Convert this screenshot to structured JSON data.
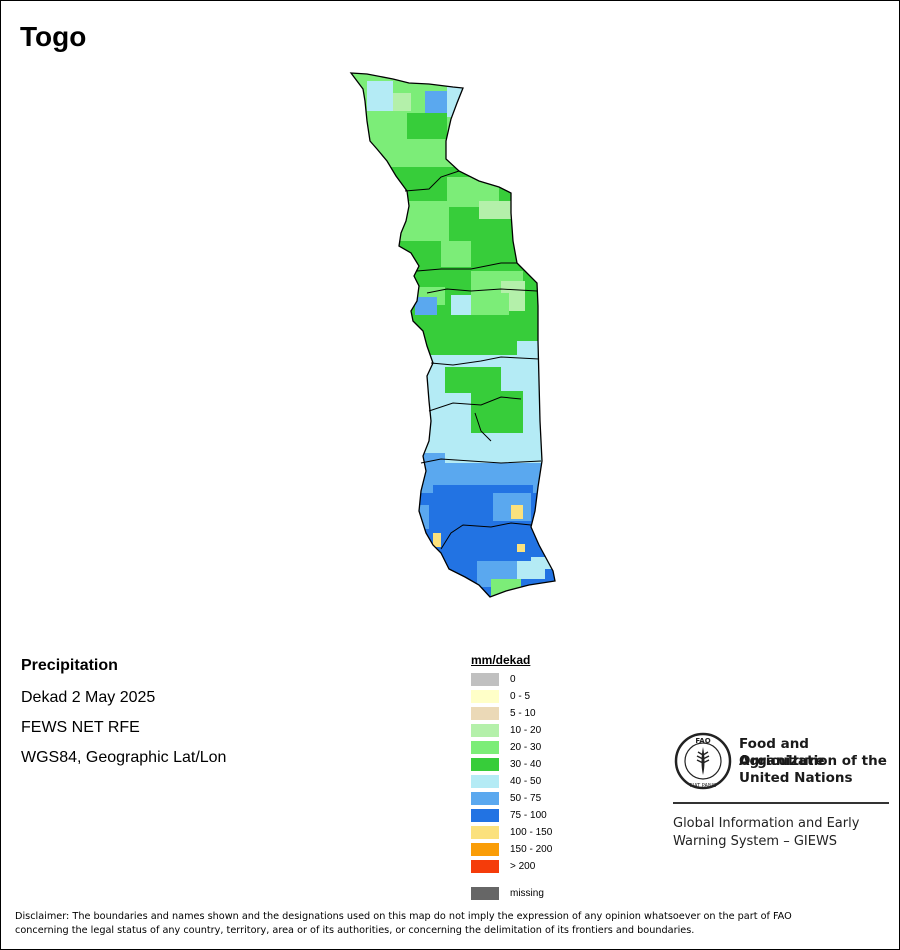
{
  "map": {
    "title": "Togo",
    "layer_title": "Precipitation",
    "period": "Dekad 2 May 2025",
    "source": "FEWS NET RFE",
    "projection": "WGS84, Geographic Lat/Lon"
  },
  "legend": {
    "title": "mm/dekad",
    "classes": [
      {
        "label": "0",
        "color": "#c0c0c0"
      },
      {
        "label": "0 - 5",
        "color": "#ffffc8"
      },
      {
        "label": "5 - 10",
        "color": "#ebd9b7"
      },
      {
        "label": "10 - 20",
        "color": "#b4f0aa"
      },
      {
        "label": "20 - 30",
        "color": "#7ced78"
      },
      {
        "label": "30 - 40",
        "color": "#37cd3a"
      },
      {
        "label": "40 - 50",
        "color": "#b4ebf5"
      },
      {
        "label": "50 - 75",
        "color": "#5aa8ef"
      },
      {
        "label": "75 - 100",
        "color": "#2273e3"
      },
      {
        "label": "100 - 150",
        "color": "#fbe17d"
      },
      {
        "label": "150 - 200",
        "color": "#fa9d07"
      },
      {
        "label": "> 200",
        "color": "#f53c0a"
      }
    ],
    "missing": {
      "label": "missing",
      "color": "#666666"
    }
  },
  "organization": {
    "logo_letters": "FAO",
    "logo_motto": "FIAT PANIS",
    "name_lines": [
      "Food and Agriculture",
      "Organization of the",
      "United Nations"
    ],
    "system_lines": [
      "Global Information and Early",
      "Warning System – GIEWS"
    ]
  },
  "disclaimer": {
    "line1": "Disclaimer: The boundaries and names shown and the designations used on this map do not imply the expression of any opinion whatsoever on the part of FAO",
    "line2": "concerning the legal status of any country, territory, area or of its authorities, or concerning the delimitation of its frontiers and boundaries."
  }
}
